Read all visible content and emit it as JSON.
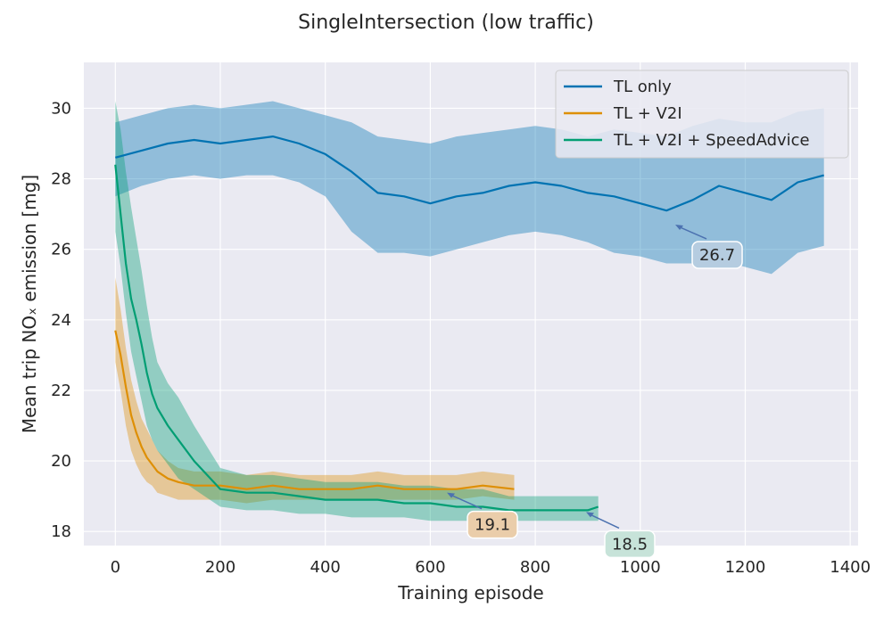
{
  "chart_data": {
    "type": "line",
    "title": "SingleIntersection (low traffic)",
    "xlabel": "Training episode",
    "ylabel": "Mean trip NOₓ emission [mg]",
    "xlim": [
      -60,
      1415
    ],
    "ylim": [
      17.6,
      31.3
    ],
    "xticks": [
      0,
      200,
      400,
      600,
      800,
      1000,
      1200,
      1400
    ],
    "yticks": [
      18,
      20,
      22,
      24,
      26,
      28,
      30
    ],
    "grid": true,
    "legend_position": "top-right",
    "colors": {
      "plot_bg": "#eaeaf2",
      "grid": "#ffffff"
    },
    "series": [
      {
        "name": "TL only",
        "color": "#0173b2",
        "x": [
          0,
          50,
          100,
          150,
          200,
          250,
          300,
          350,
          400,
          450,
          500,
          550,
          600,
          650,
          700,
          750,
          800,
          850,
          900,
          950,
          1000,
          1050,
          1100,
          1150,
          1200,
          1250,
          1300,
          1350
        ],
        "mean": [
          28.6,
          28.8,
          29.0,
          29.1,
          29.0,
          29.1,
          29.2,
          29.0,
          28.7,
          28.2,
          27.6,
          27.5,
          27.3,
          27.5,
          27.6,
          27.8,
          27.9,
          27.8,
          27.6,
          27.5,
          27.3,
          27.1,
          27.4,
          27.8,
          27.6,
          27.4,
          27.9,
          28.1
        ],
        "lower": [
          27.5,
          27.8,
          28.0,
          28.1,
          28.0,
          28.1,
          28.1,
          27.9,
          27.5,
          26.5,
          25.9,
          25.9,
          25.8,
          26.0,
          26.2,
          26.4,
          26.5,
          26.4,
          26.2,
          25.9,
          25.8,
          25.6,
          25.6,
          25.7,
          25.5,
          25.3,
          25.9,
          26.1
        ],
        "upper": [
          29.6,
          29.8,
          30.0,
          30.1,
          30.0,
          30.1,
          30.2,
          30.0,
          29.8,
          29.6,
          29.2,
          29.1,
          29.0,
          29.2,
          29.3,
          29.4,
          29.5,
          29.4,
          29.2,
          29.4,
          29.3,
          29.2,
          29.5,
          29.7,
          29.6,
          29.6,
          29.9,
          30.0
        ]
      },
      {
        "name": "TL + V2I",
        "color": "#de8f05",
        "x": [
          0,
          10,
          20,
          30,
          40,
          50,
          60,
          70,
          80,
          100,
          120,
          150,
          200,
          250,
          300,
          350,
          400,
          450,
          500,
          550,
          600,
          650,
          700,
          760
        ],
        "mean": [
          23.7,
          23.0,
          22.1,
          21.3,
          20.8,
          20.4,
          20.1,
          19.9,
          19.7,
          19.5,
          19.4,
          19.3,
          19.3,
          19.2,
          19.3,
          19.2,
          19.2,
          19.2,
          19.3,
          19.2,
          19.2,
          19.2,
          19.3,
          19.2
        ],
        "lower": [
          22.8,
          22.0,
          21.0,
          20.3,
          19.9,
          19.6,
          19.4,
          19.3,
          19.1,
          19.0,
          18.9,
          18.9,
          18.9,
          18.8,
          18.9,
          18.9,
          18.9,
          18.9,
          18.9,
          18.9,
          18.9,
          18.9,
          19.0,
          18.9
        ],
        "upper": [
          25.2,
          24.3,
          23.2,
          22.3,
          21.7,
          21.2,
          20.9,
          20.6,
          20.3,
          20.0,
          19.8,
          19.7,
          19.7,
          19.6,
          19.7,
          19.6,
          19.6,
          19.6,
          19.7,
          19.6,
          19.6,
          19.6,
          19.7,
          19.6
        ]
      },
      {
        "name": "TL + V2I + SpeedAdvice",
        "color": "#029e73",
        "x": [
          0,
          10,
          20,
          30,
          40,
          50,
          60,
          70,
          80,
          100,
          120,
          150,
          200,
          250,
          300,
          350,
          400,
          450,
          500,
          550,
          600,
          650,
          700,
          750,
          800,
          850,
          900,
          920
        ],
        "mean": [
          28.4,
          27.0,
          25.6,
          24.6,
          24.0,
          23.3,
          22.5,
          21.9,
          21.5,
          21.0,
          20.6,
          20.0,
          19.2,
          19.1,
          19.1,
          19.0,
          18.9,
          18.9,
          18.9,
          18.8,
          18.8,
          18.7,
          18.7,
          18.6,
          18.6,
          18.6,
          18.6,
          18.7
        ],
        "lower": [
          26.5,
          25.5,
          24.2,
          23.1,
          22.4,
          21.7,
          21.0,
          20.6,
          20.3,
          19.9,
          19.5,
          19.2,
          18.7,
          18.6,
          18.6,
          18.5,
          18.5,
          18.4,
          18.4,
          18.4,
          18.3,
          18.3,
          18.3,
          18.3,
          18.3,
          18.3,
          18.3,
          18.3
        ],
        "upper": [
          30.2,
          29.4,
          28.2,
          27.2,
          26.3,
          25.4,
          24.4,
          23.5,
          22.8,
          22.2,
          21.8,
          21.0,
          19.8,
          19.6,
          19.6,
          19.5,
          19.4,
          19.4,
          19.4,
          19.3,
          19.3,
          19.2,
          19.2,
          19.0,
          19.0,
          19.0,
          19.0,
          19.0
        ]
      }
    ],
    "annotations": [
      {
        "text": "26.7",
        "series": "TL only",
        "x": 1065,
        "y": 26.7,
        "bg": "#b5cce0"
      },
      {
        "text": "19.1",
        "series": "TL + V2I",
        "x": 630,
        "y": 19.1,
        "bg": "#eacdaa"
      },
      {
        "text": "18.5",
        "series": "TL + V2I + SpeedAdvice",
        "x": 895,
        "y": 18.55,
        "bg": "#c7e3d9"
      }
    ]
  }
}
